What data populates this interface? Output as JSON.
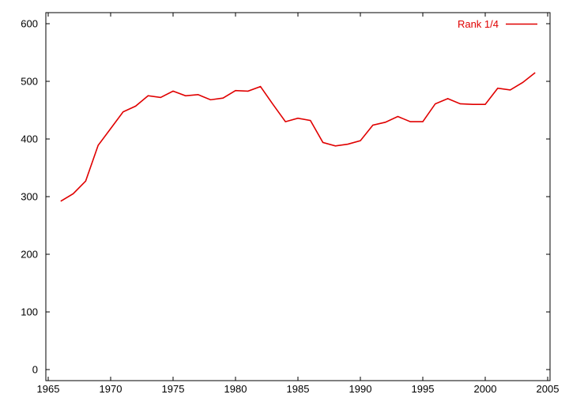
{
  "chart_data": {
    "type": "line",
    "title": "",
    "xlabel": "",
    "ylabel": "",
    "xlim": [
      1965,
      2005
    ],
    "ylim": [
      0,
      600
    ],
    "x_ticks": [
      1965,
      1970,
      1975,
      1980,
      1985,
      1990,
      1995,
      2000,
      2005
    ],
    "y_ticks": [
      0,
      100,
      200,
      300,
      400,
      500,
      600
    ],
    "x_tick_labels": [
      "1965",
      "1970",
      "1975",
      "1980",
      "1985",
      "1990",
      "1995",
      "2000",
      "2005"
    ],
    "y_tick_labels": [
      "0",
      "100",
      "200",
      "300",
      "400",
      "500",
      "600"
    ],
    "grid": false,
    "legend_position": "top-right",
    "series": [
      {
        "name": "Rank 1/4",
        "color": "#e00000",
        "x": [
          1966,
          1967,
          1968,
          1969,
          1970,
          1971,
          1972,
          1973,
          1974,
          1975,
          1976,
          1977,
          1978,
          1979,
          1980,
          1981,
          1982,
          1983,
          1984,
          1985,
          1986,
          1987,
          1988,
          1989,
          1990,
          1991,
          1992,
          1993,
          1994,
          1995,
          1996,
          1997,
          1998,
          1999,
          2000,
          2001,
          2002,
          2003,
          2004
        ],
        "y": [
          292,
          305,
          327,
          389,
          418,
          447,
          457,
          475,
          472,
          483,
          475,
          477,
          468,
          471,
          484,
          483,
          491,
          460,
          430,
          436,
          432,
          394,
          388,
          391,
          397,
          424,
          429,
          439,
          430,
          430,
          461,
          470,
          461,
          460,
          460,
          488,
          485,
          498,
          515
        ]
      }
    ]
  }
}
